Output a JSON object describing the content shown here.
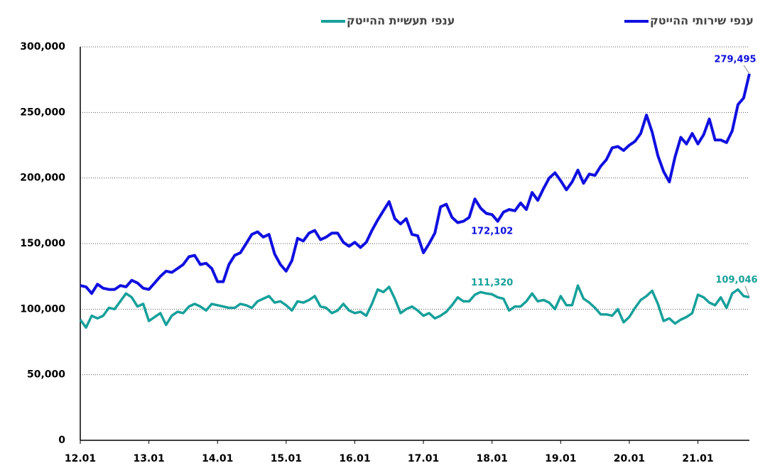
{
  "chart_data": {
    "type": "line",
    "categories": [
      "12.01",
      null,
      null,
      null,
      null,
      null,
      null,
      null,
      null,
      null,
      null,
      null,
      "13.01",
      null,
      null,
      null,
      null,
      null,
      null,
      null,
      null,
      null,
      null,
      null,
      "14.01",
      null,
      null,
      null,
      null,
      null,
      null,
      null,
      null,
      null,
      null,
      null,
      "15.01",
      null,
      null,
      null,
      null,
      null,
      null,
      null,
      null,
      null,
      null,
      null,
      "16.01",
      null,
      null,
      null,
      null,
      null,
      null,
      null,
      null,
      null,
      null,
      null,
      "17.01",
      null,
      null,
      null,
      null,
      null,
      null,
      null,
      null,
      null,
      null,
      null,
      "18.01",
      null,
      null,
      null,
      null,
      null,
      null,
      null,
      null,
      null,
      null,
      null,
      "19.01",
      null,
      null,
      null,
      null,
      null,
      null,
      null,
      null,
      null,
      null,
      null,
      "20.01",
      null,
      null,
      null,
      null,
      null,
      null,
      null,
      null,
      null,
      null,
      null,
      "21.01",
      null,
      null,
      null,
      null,
      null,
      null,
      null,
      null,
      null
    ],
    "series": [
      {
        "name": "ענפי שירותי ההייטק",
        "color": "#1010e0",
        "values": [
          118000,
          117000,
          112000,
          119000,
          116000,
          115000,
          115000,
          118000,
          117000,
          122000,
          120000,
          116000,
          115000,
          120000,
          125000,
          129000,
          128000,
          131000,
          134000,
          140000,
          141000,
          134000,
          135000,
          131000,
          121000,
          121000,
          134000,
          141000,
          143000,
          150000,
          157000,
          159000,
          155000,
          157000,
          142000,
          134000,
          129000,
          137000,
          154000,
          152000,
          158000,
          160000,
          153000,
          155000,
          158000,
          158000,
          151000,
          148000,
          151000,
          147000,
          151000,
          160000,
          168000,
          175000,
          182000,
          169000,
          165000,
          169000,
          157000,
          156000,
          143000,
          150000,
          158000,
          178000,
          180000,
          170000,
          166000,
          167000,
          170000,
          184000,
          177000,
          173000,
          172102,
          167000,
          174000,
          176000,
          175000,
          181000,
          176000,
          189000,
          183000,
          192000,
          200000,
          204000,
          198000,
          191000,
          197000,
          206000,
          196000,
          203000,
          202000,
          209000,
          214000,
          223000,
          224000,
          221000,
          225000,
          228000,
          234000,
          248000,
          235000,
          217000,
          205000,
          197000,
          216000,
          231000,
          226000,
          234000,
          226000,
          233000,
          245000,
          229000,
          229000,
          227000,
          236000,
          256000,
          261000,
          279495
        ],
        "value_labels": [
          null,
          null,
          null,
          null,
          null,
          null,
          null,
          null,
          null,
          null,
          null,
          null,
          null,
          null,
          null,
          null,
          null,
          null,
          null,
          null,
          null,
          null,
          null,
          null,
          null,
          null,
          null,
          null,
          null,
          null,
          null,
          null,
          null,
          null,
          null,
          null,
          null,
          null,
          null,
          null,
          null,
          null,
          null,
          null,
          null,
          null,
          null,
          null,
          null,
          null,
          null,
          null,
          null,
          null,
          null,
          null,
          null,
          null,
          null,
          null,
          null,
          null,
          null,
          null,
          null,
          null,
          null,
          null,
          null,
          null,
          null,
          null,
          "172,102",
          null,
          null,
          null,
          null,
          null,
          null,
          null,
          null,
          null,
          null,
          null,
          null,
          null,
          null,
          null,
          null,
          null,
          null,
          null,
          null,
          null,
          null,
          null,
          null,
          null,
          null,
          null,
          null,
          null,
          null,
          null,
          null,
          null,
          null,
          null,
          null,
          null,
          null,
          null,
          null,
          null,
          null,
          null,
          null,
          "279,495"
        ]
      },
      {
        "name": "ענפי תעשיית ההייטק",
        "color": "#17a09a",
        "values": [
          92000,
          86000,
          95000,
          93000,
          95000,
          101000,
          100000,
          106000,
          112000,
          109000,
          102000,
          104000,
          91000,
          94000,
          97000,
          88000,
          95000,
          98000,
          97000,
          102000,
          104000,
          102000,
          99000,
          104000,
          103000,
          102000,
          101000,
          101000,
          104000,
          103000,
          101000,
          106000,
          108000,
          110000,
          105000,
          106000,
          103000,
          99000,
          106000,
          105000,
          107000,
          110000,
          102000,
          101000,
          97000,
          99000,
          104000,
          99000,
          97000,
          98000,
          95000,
          104000,
          115000,
          113000,
          117000,
          108000,
          97000,
          100000,
          102000,
          99000,
          95000,
          97000,
          93000,
          95000,
          98000,
          103000,
          109000,
          106000,
          106000,
          111000,
          113000,
          112000,
          111320,
          109000,
          108000,
          99000,
          102000,
          102000,
          106000,
          112000,
          106000,
          107000,
          105000,
          100000,
          110000,
          103000,
          103000,
          118000,
          108000,
          105000,
          101000,
          96000,
          96000,
          95000,
          100000,
          90000,
          94000,
          101000,
          107000,
          110000,
          114000,
          104000,
          91000,
          93000,
          89000,
          92000,
          94000,
          97000,
          111000,
          109000,
          105000,
          103000,
          109000,
          101000,
          112000,
          115000,
          110000,
          109046
        ],
        "value_labels": [
          null,
          null,
          null,
          null,
          null,
          null,
          null,
          null,
          null,
          null,
          null,
          null,
          null,
          null,
          null,
          null,
          null,
          null,
          null,
          null,
          null,
          null,
          null,
          null,
          null,
          null,
          null,
          null,
          null,
          null,
          null,
          null,
          null,
          null,
          null,
          null,
          null,
          null,
          null,
          null,
          null,
          null,
          null,
          null,
          null,
          null,
          null,
          null,
          null,
          null,
          null,
          null,
          null,
          null,
          null,
          null,
          null,
          null,
          null,
          null,
          null,
          null,
          null,
          null,
          null,
          null,
          null,
          null,
          null,
          null,
          null,
          null,
          "111,320",
          null,
          null,
          null,
          null,
          null,
          null,
          null,
          null,
          null,
          null,
          null,
          null,
          null,
          null,
          null,
          null,
          null,
          null,
          null,
          null,
          null,
          null,
          null,
          null,
          null,
          null,
          null,
          null,
          null,
          null,
          null,
          null,
          null,
          null,
          null,
          null,
          null,
          null,
          null,
          null,
          null,
          null,
          null,
          null,
          "109,046"
        ]
      }
    ],
    "ylim": [
      0,
      300000
    ],
    "yticks": [
      0,
      {
        "value": 50000,
        "label": "50,000"
      },
      {
        "value": 100000,
        "label": "100,000"
      },
      {
        "value": 150000,
        "label": "150,000"
      },
      {
        "value": 200000,
        "label": "200,000"
      },
      {
        "value": 250000,
        "label": "250,000"
      },
      {
        "value": 300000,
        "label": "300,000"
      }
    ],
    "grid": true
  }
}
